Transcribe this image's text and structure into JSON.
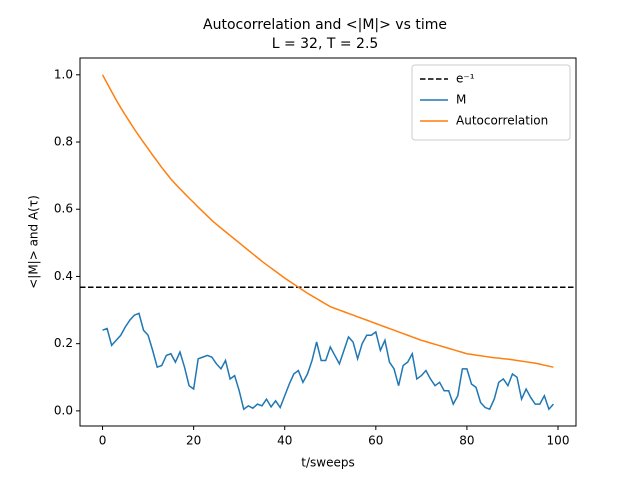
{
  "chart_data": {
    "type": "line",
    "title": "Autocorrelation and <|M|> vs time",
    "subtitle": "L = 32, T = 2.5",
    "x_label": "t/sweeps",
    "y_label": "<|M|> and A(τ)",
    "x": [
      0,
      1,
      2,
      3,
      4,
      5,
      6,
      7,
      8,
      9,
      10,
      11,
      12,
      13,
      14,
      15,
      16,
      17,
      18,
      19,
      20,
      21,
      22,
      23,
      24,
      25,
      26,
      27,
      28,
      29,
      30,
      31,
      32,
      33,
      34,
      35,
      36,
      37,
      38,
      39,
      40,
      41,
      42,
      43,
      44,
      45,
      46,
      47,
      48,
      49,
      50,
      51,
      52,
      53,
      54,
      55,
      56,
      57,
      58,
      59,
      60,
      61,
      62,
      63,
      64,
      65,
      66,
      67,
      68,
      69,
      70,
      71,
      72,
      73,
      74,
      75,
      76,
      77,
      78,
      79,
      80,
      81,
      82,
      83,
      84,
      85,
      86,
      87,
      88,
      89,
      90,
      91,
      92,
      93,
      94,
      95,
      96,
      97,
      98,
      99
    ],
    "hline": {
      "name": "e⁻¹",
      "value": 0.3679,
      "color": "#000000"
    },
    "series": [
      {
        "name": "M",
        "color": "#1f77b4",
        "values": [
          0.24,
          0.245,
          0.195,
          0.21,
          0.225,
          0.25,
          0.27,
          0.285,
          0.29,
          0.24,
          0.225,
          0.18,
          0.13,
          0.135,
          0.165,
          0.17,
          0.145,
          0.175,
          0.13,
          0.075,
          0.065,
          0.155,
          0.16,
          0.165,
          0.16,
          0.14,
          0.125,
          0.15,
          0.095,
          0.105,
          0.06,
          0.005,
          0.015,
          0.008,
          0.02,
          0.015,
          0.035,
          0.012,
          0.03,
          0.01,
          0.045,
          0.08,
          0.11,
          0.12,
          0.085,
          0.11,
          0.15,
          0.205,
          0.15,
          0.15,
          0.19,
          0.165,
          0.14,
          0.18,
          0.22,
          0.205,
          0.155,
          0.2,
          0.225,
          0.225,
          0.235,
          0.18,
          0.21,
          0.145,
          0.125,
          0.075,
          0.135,
          0.145,
          0.17,
          0.095,
          0.105,
          0.12,
          0.095,
          0.075,
          0.085,
          0.06,
          0.06,
          0.02,
          0.045,
          0.125,
          0.125,
          0.08,
          0.07,
          0.025,
          0.01,
          0.005,
          0.035,
          0.085,
          0.095,
          0.075,
          0.11,
          0.1,
          0.035,
          0.065,
          0.04,
          0.02,
          0.02,
          0.045,
          0.005,
          0.02
        ]
      },
      {
        "name": "Autocorrelation",
        "color": "#ff7f0e",
        "values": [
          1.0,
          0.975,
          0.95,
          0.925,
          0.902,
          0.88,
          0.859,
          0.838,
          0.818,
          0.799,
          0.78,
          0.761,
          0.743,
          0.724,
          0.707,
          0.69,
          0.675,
          0.661,
          0.647,
          0.633,
          0.62,
          0.606,
          0.593,
          0.58,
          0.567,
          0.555,
          0.544,
          0.533,
          0.522,
          0.511,
          0.5,
          0.489,
          0.478,
          0.467,
          0.456,
          0.445,
          0.435,
          0.425,
          0.415,
          0.405,
          0.395,
          0.386,
          0.377,
          0.368,
          0.359,
          0.35,
          0.342,
          0.334,
          0.326,
          0.318,
          0.31,
          0.305,
          0.3,
          0.295,
          0.29,
          0.285,
          0.28,
          0.275,
          0.27,
          0.265,
          0.26,
          0.255,
          0.25,
          0.245,
          0.24,
          0.235,
          0.23,
          0.225,
          0.22,
          0.215,
          0.21,
          0.206,
          0.202,
          0.198,
          0.194,
          0.19,
          0.186,
          0.182,
          0.178,
          0.174,
          0.17,
          0.168,
          0.166,
          0.164,
          0.162,
          0.16,
          0.158,
          0.157,
          0.155,
          0.154,
          0.152,
          0.15,
          0.148,
          0.146,
          0.144,
          0.142,
          0.139,
          0.136,
          0.133,
          0.13
        ]
      }
    ],
    "xlim": [
      -4.95,
      103.95
    ],
    "ylim": [
      -0.045,
      1.05
    ],
    "xticks": [
      0,
      20,
      40,
      60,
      80,
      100
    ],
    "yticks": [
      {
        "value": 0,
        "label": "0.0"
      },
      0.2,
      0.4,
      0.6,
      0.8,
      {
        "value": 1,
        "label": "1.0"
      }
    ],
    "legend": "upper right",
    "grid": false
  }
}
